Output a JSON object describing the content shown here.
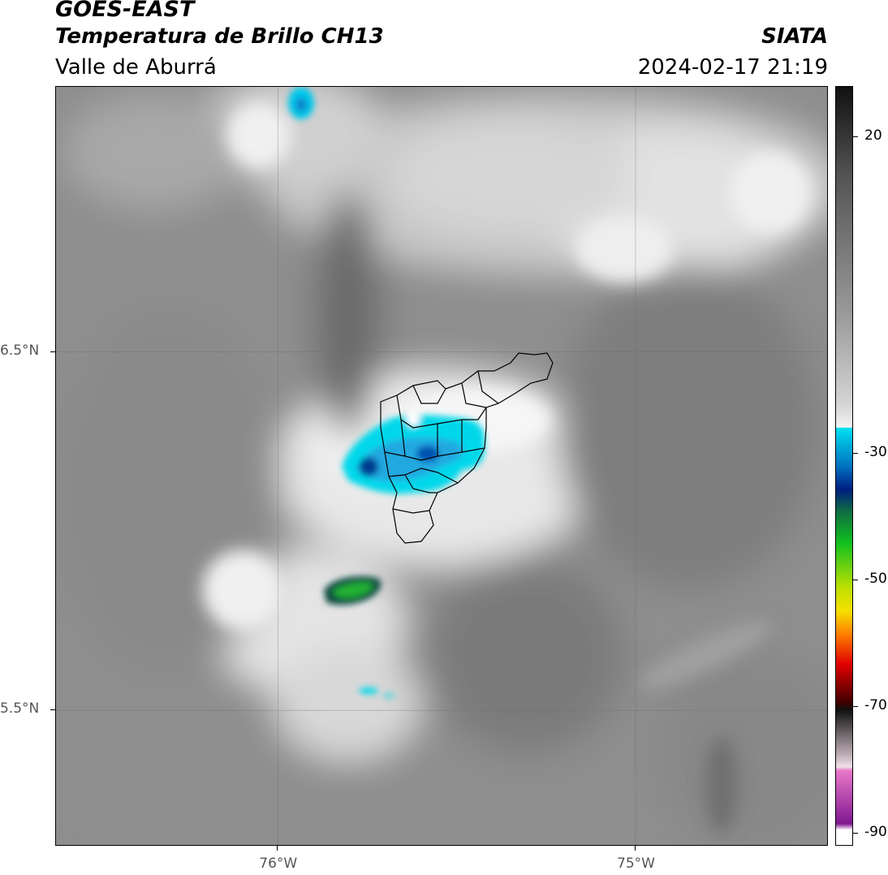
{
  "header": {
    "satellite": "GOES-EAST",
    "product": "Temperatura de Brillo CH13",
    "region": "Valle de Aburrá",
    "agency": "SIATA",
    "datetime": "2024-02-17 21:19"
  },
  "map": {
    "lon_range": [
      -76.62,
      -74.46
    ],
    "lat_range": [
      5.12,
      7.24
    ],
    "lat_ticks": [
      {
        "value": 6.5,
        "label": "6.5°N"
      },
      {
        "value": 5.5,
        "label": "5.5°N"
      }
    ],
    "lon_ticks": [
      {
        "value": -76.0,
        "label": "76°W"
      },
      {
        "value": -75.0,
        "label": "75°W"
      }
    ]
  },
  "colorbar": {
    "range": [
      -92,
      28
    ],
    "ticks": [
      {
        "value": 20,
        "label": "20"
      },
      {
        "value": -30,
        "label": "-30"
      },
      {
        "value": -50,
        "label": "-50"
      },
      {
        "value": -70,
        "label": "-70"
      },
      {
        "value": -90,
        "label": "-90"
      }
    ],
    "colors": {
      "warm_top": "#111111",
      "gray_mid": "#8a8a8a",
      "light": "#f2f2f2",
      "cyan": "#00d8ea",
      "blue": "#0070c0",
      "navy": "#001e80",
      "green": "#10c020",
      "yellow": "#f4e000",
      "orange": "#ff8000",
      "red": "#e00000",
      "dark_red": "#400000",
      "pink": "#e878c8",
      "purple": "#801890"
    }
  }
}
